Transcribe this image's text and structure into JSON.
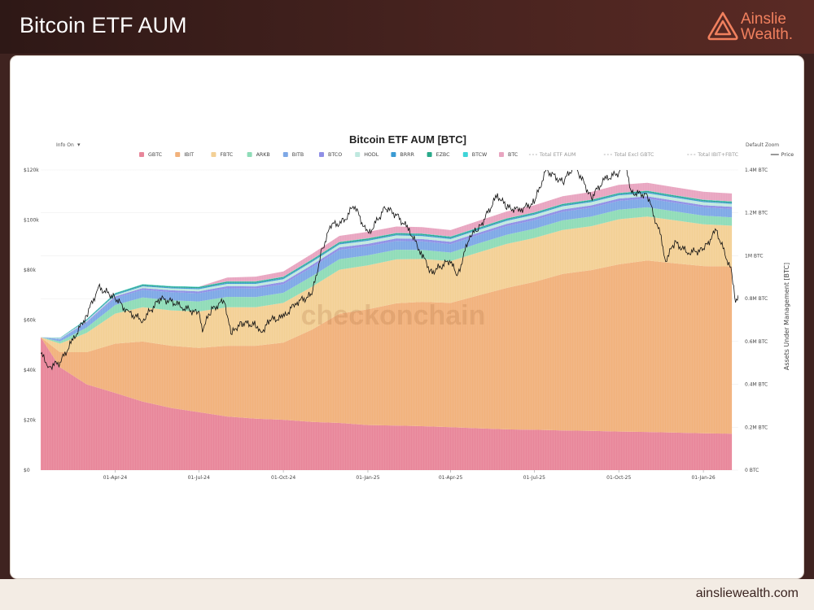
{
  "header": {
    "title": "Bitcoin ETF AUM"
  },
  "brand": {
    "line1": "Ainslie",
    "line2": "Wealth",
    "dot": ".",
    "logo_icon": "triangle-a-icon",
    "accent": "#f1805e"
  },
  "footer": {
    "url": "ainsliewealth.com"
  },
  "controls": {
    "info_label": "Info On",
    "info_caret": "▾",
    "zoom_label": "Default Zoom"
  },
  "watermark": "checkonchain",
  "colors": {
    "GBTC": "#e8869a",
    "IBIT": "#f2b27c",
    "FBTC": "#f3d095",
    "ARKB": "#8fdcb8",
    "BITB": "#7ea8e6",
    "BTCO": "#8f8fe6",
    "HODL": "#bfe8df",
    "BRRR": "#3b9bd3",
    "EZBC": "#2aa98a",
    "BTCW": "#3fd4d8",
    "BTC": "#e8a5c0",
    "Price": "#111111"
  },
  "chart_data": {
    "type": "area",
    "title": "Bitcoin ETF AUM [BTC]",
    "y2label": "Assets Under Management [BTC]",
    "x_ticks": [
      "01-Apr-24",
      "01-Jul-24",
      "01-Oct-24",
      "01-Jan-25",
      "01-Apr-25",
      "01-Jul-25",
      "01-Oct-25",
      "01-Jan-26"
    ],
    "y_left_ticks": [
      "$0",
      "$20k",
      "$40k",
      "$60k",
      "$80k",
      "$100k",
      "$120k"
    ],
    "y_right_ticks": [
      "0 BTC",
      "0.2M BTC",
      "0.4M BTC",
      "0.6M BTC",
      "0.8M BTC",
      "1M BTC",
      "1.2M BTC",
      "1.4M BTC"
    ],
    "y_left_range": [
      0,
      120000
    ],
    "y_right_range": [
      0,
      1400000
    ],
    "legend": [
      "GBTC",
      "IBIT",
      "FBTC",
      "ARKB",
      "BITB",
      "BTCO",
      "HODL",
      "BRRR",
      "EZBC",
      "BTCW",
      "BTC",
      "Total ETF AUM",
      "Total Excl GBTC",
      "Total IBIT+FBTC",
      "Price"
    ],
    "legend_style": {
      "GBTC": "square",
      "IBIT": "square",
      "FBTC": "square",
      "ARKB": "square",
      "BITB": "square",
      "BTCO": "square",
      "HODL": "square",
      "BRRR": "square",
      "EZBC": "square",
      "BTCW": "square",
      "BTC": "square",
      "Total ETF AUM": "dash",
      "Total Excl GBTC": "dash",
      "Total IBIT+FBTC": "dash",
      "Price": "line"
    },
    "x_dates": [
      "11-Jan-24",
      "01-Feb-24",
      "01-Mar-24",
      "01-Apr-24",
      "01-May-24",
      "01-Jun-24",
      "01-Jul-24",
      "01-Aug-24",
      "01-Sep-24",
      "01-Oct-24",
      "01-Nov-24",
      "01-Dec-24",
      "01-Jan-25",
      "01-Feb-25",
      "01-Mar-25",
      "01-Apr-25",
      "01-May-25",
      "01-Jun-25",
      "01-Jul-25",
      "01-Aug-25",
      "01-Sep-25",
      "01-Oct-25",
      "01-Nov-25",
      "01-Dec-25",
      "01-Jan-26",
      "01-Feb-26"
    ],
    "series": [
      {
        "name": "GBTC",
        "values": [
          620000,
          480000,
          400000,
          360000,
          320000,
          290000,
          270000,
          250000,
          240000,
          235000,
          225000,
          220000,
          210000,
          208000,
          205000,
          200000,
          195000,
          190000,
          188000,
          185000,
          183000,
          180000,
          178000,
          175000,
          172000,
          170000
        ]
      },
      {
        "name": "IBIT",
        "values": [
          0,
          70000,
          150000,
          230000,
          280000,
          290000,
          300000,
          330000,
          340000,
          360000,
          430000,
          510000,
          540000,
          570000,
          580000,
          580000,
          620000,
          660000,
          690000,
          730000,
          750000,
          780000,
          800000,
          790000,
          780000,
          780000
        ]
      },
      {
        "name": "FBTC",
        "values": [
          0,
          40000,
          90000,
          140000,
          160000,
          165000,
          170000,
          180000,
          180000,
          185000,
          200000,
          205000,
          205000,
          205000,
          200000,
          195000,
          200000,
          205000,
          205000,
          205000,
          205000,
          210000,
          205000,
          200000,
          195000,
          190000
        ]
      },
      {
        "name": "ARKB",
        "values": [
          0,
          10000,
          25000,
          40000,
          45000,
          47000,
          47000,
          48000,
          47000,
          47000,
          49000,
          49000,
          47000,
          45000,
          42000,
          40000,
          42000,
          43000,
          43000,
          45000,
          45000,
          45000,
          43000,
          42000,
          40000,
          39000
        ]
      },
      {
        "name": "BITB",
        "values": [
          0,
          10000,
          22000,
          33000,
          36000,
          38000,
          38000,
          40000,
          40000,
          40000,
          42000,
          43000,
          42000,
          41000,
          40000,
          39000,
          39000,
          40000,
          40000,
          40000,
          41000,
          41000,
          40000,
          40000,
          39000,
          39000
        ]
      },
      {
        "name": "BTCO",
        "values": [
          0,
          2000,
          5000,
          7000,
          8000,
          9000,
          9000,
          10000,
          10000,
          11000,
          11000,
          12000,
          12000,
          12000,
          11000,
          11000,
          11000,
          11000,
          11000,
          11000,
          11000,
          11000,
          11000,
          10000,
          10000,
          10000
        ]
      },
      {
        "name": "HODL",
        "values": [
          0,
          3000,
          5000,
          7000,
          8000,
          9000,
          10000,
          11000,
          12000,
          13000,
          14000,
          14000,
          14000,
          14000,
          14000,
          13000,
          13000,
          14000,
          14000,
          15000,
          15000,
          15000,
          15000,
          14000,
          14000,
          14000
        ]
      },
      {
        "name": "BRRR",
        "values": [
          0,
          1000,
          3000,
          4000,
          4000,
          4000,
          5000,
          5000,
          5000,
          5000,
          5000,
          5000,
          5000,
          5000,
          5000,
          5000,
          5000,
          5000,
          5000,
          5000,
          5000,
          5000,
          5000,
          5000,
          5000,
          5000
        ]
      },
      {
        "name": "EZBC",
        "values": [
          0,
          1000,
          3000,
          4000,
          5000,
          5000,
          5000,
          5000,
          5000,
          5000,
          5000,
          5000,
          5000,
          5000,
          5000,
          5000,
          5000,
          5000,
          5000,
          5000,
          5000,
          5000,
          5000,
          5000,
          5000,
          5000
        ]
      },
      {
        "name": "BTCW",
        "values": [
          0,
          500,
          1000,
          1500,
          1500,
          1500,
          1500,
          1500,
          1500,
          1500,
          1500,
          1500,
          1500,
          1500,
          1500,
          1500,
          1500,
          1500,
          1500,
          1500,
          1500,
          1500,
          1500,
          1500,
          1500,
          1500
        ]
      },
      {
        "name": "BTC",
        "values": [
          0,
          0,
          0,
          0,
          0,
          0,
          0,
          18000,
          22000,
          24000,
          26000,
          28000,
          30000,
          30000,
          30000,
          30000,
          31000,
          32000,
          33000,
          35000,
          36000,
          37000,
          37000,
          37000,
          37000,
          37000
        ]
      }
    ],
    "price": {
      "name": "Price",
      "x": [
        "11-Jan-24",
        "20-Jan-24",
        "01-Feb-24",
        "15-Feb-24",
        "01-Mar-24",
        "14-Mar-24",
        "01-Apr-24",
        "15-Apr-24",
        "01-May-24",
        "20-May-24",
        "01-Jun-24",
        "15-Jun-24",
        "01-Jul-24",
        "05-Jul-24",
        "15-Jul-24",
        "29-Jul-24",
        "05-Aug-24",
        "15-Aug-24",
        "01-Sep-24",
        "06-Sep-24",
        "15-Sep-24",
        "01-Oct-24",
        "15-Oct-24",
        "01-Nov-24",
        "12-Nov-24",
        "22-Nov-24",
        "05-Dec-24",
        "17-Dec-24",
        "01-Jan-25",
        "20-Jan-25",
        "01-Feb-25",
        "15-Feb-25",
        "01-Mar-25",
        "11-Mar-25",
        "01-Apr-25",
        "08-Apr-25",
        "22-Apr-25",
        "01-May-25",
        "22-May-25",
        "01-Jun-25",
        "15-Jun-25",
        "01-Jul-25",
        "14-Jul-25",
        "01-Aug-25",
        "14-Aug-25",
        "01-Sep-25",
        "15-Sep-25",
        "01-Oct-25",
        "06-Oct-25",
        "15-Oct-25",
        "01-Nov-25",
        "15-Nov-25",
        "21-Nov-25",
        "01-Dec-25",
        "15-Dec-25",
        "01-Jan-26",
        "15-Jan-26",
        "01-Feb-26",
        "05-Feb-26",
        "08-Feb-26"
      ],
      "values": [
        46500,
        41500,
        43000,
        52000,
        62000,
        73000,
        69000,
        63000,
        60000,
        68500,
        67500,
        65000,
        62500,
        56500,
        64000,
        68000,
        54000,
        59000,
        58000,
        54000,
        60000,
        61000,
        67000,
        70000,
        88000,
        98000,
        99000,
        106000,
        94000,
        105000,
        102000,
        96000,
        86000,
        79000,
        84000,
        77000,
        94000,
        96000,
        110000,
        105000,
        104000,
        107000,
        120000,
        115000,
        122000,
        109000,
        116000,
        119000,
        125000,
        111000,
        110000,
        94000,
        84000,
        91000,
        87000,
        88000,
        96000,
        79000,
        66000,
        70000
      ]
    }
  }
}
